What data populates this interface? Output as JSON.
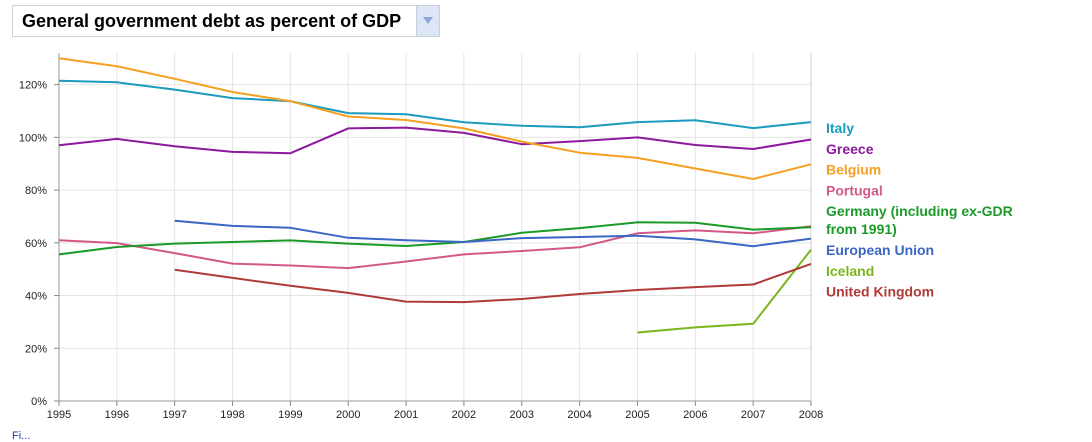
{
  "header": {
    "title": "General government debt as percent of GDP",
    "dropdown_icon": "chevron-down-icon"
  },
  "chart_data": {
    "type": "line",
    "title": "General government debt as percent of GDP",
    "xlabel": "",
    "ylabel": "",
    "x": [
      1995,
      1996,
      1997,
      1998,
      1999,
      2000,
      2001,
      2002,
      2003,
      2004,
      2005,
      2006,
      2007,
      2008
    ],
    "x_tick_labels": [
      "1995",
      "1996",
      "1997",
      "1998",
      "1999",
      "2000",
      "2001",
      "2002",
      "2003",
      "2004",
      "2005",
      "2006",
      "2007",
      "2008"
    ],
    "y_ticks": [
      0,
      20,
      40,
      60,
      80,
      100,
      120
    ],
    "y_tick_labels": [
      "0%",
      "20%",
      "40%",
      "60%",
      "80%",
      "100%",
      "120%"
    ],
    "ylim": [
      0,
      132
    ],
    "xlim": [
      1995,
      2008
    ],
    "grid": true,
    "legend_position": "right",
    "series": [
      {
        "name": "Italy",
        "color": "#1a9bbf",
        "values": [
          121.5,
          120.9,
          118.1,
          114.9,
          113.7,
          109.2,
          108.8,
          105.7,
          104.4,
          103.8,
          105.8,
          106.5,
          103.5,
          105.8
        ]
      },
      {
        "name": "Greece",
        "color": "#8b1a9c",
        "values": [
          97.0,
          99.4,
          96.6,
          94.5,
          94.0,
          103.4,
          103.7,
          101.7,
          97.4,
          98.6,
          100.0,
          97.1,
          95.6,
          99.2
        ]
      },
      {
        "name": "Belgium",
        "color": "#f5a020",
        "values": [
          130.0,
          127.0,
          122.2,
          117.2,
          113.7,
          107.9,
          106.6,
          103.4,
          98.4,
          94.2,
          92.2,
          88.2,
          84.2,
          89.8
        ]
      },
      {
        "name": "Portugal",
        "color": "#d4578a",
        "values": [
          61.0,
          59.9,
          56.1,
          52.1,
          51.4,
          50.4,
          52.9,
          55.6,
          56.9,
          58.3,
          63.6,
          64.7,
          63.6,
          66.3
        ]
      },
      {
        "name": "Germany (including ex-GDR from 1991)",
        "color": "#1a9a28",
        "values": [
          55.6,
          58.4,
          59.7,
          60.3,
          60.9,
          59.7,
          58.8,
          60.3,
          63.8,
          65.6,
          67.8,
          67.6,
          65.0,
          65.9
        ]
      },
      {
        "name": "European Union",
        "color": "#3a66c4",
        "values": [
          null,
          null,
          68.4,
          66.4,
          65.7,
          61.9,
          61.0,
          60.3,
          61.8,
          62.2,
          62.7,
          61.3,
          58.7,
          61.6
        ]
      },
      {
        "name": "Iceland",
        "color": "#7ab51d",
        "values": [
          null,
          null,
          null,
          null,
          null,
          null,
          null,
          null,
          null,
          null,
          26.0,
          27.9,
          29.3,
          57.4
        ]
      },
      {
        "name": "United Kingdom",
        "color": "#b03a35",
        "values": [
          null,
          null,
          49.8,
          46.7,
          43.7,
          41.0,
          37.7,
          37.5,
          38.7,
          40.6,
          42.1,
          43.2,
          44.2,
          52.0
        ]
      }
    ]
  },
  "footer": {
    "link_text": "Fi..."
  }
}
